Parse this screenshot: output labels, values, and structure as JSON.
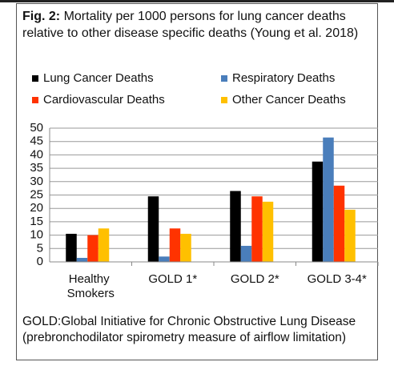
{
  "chart_data": {
    "type": "bar",
    "figure_label": "Fig. 2:",
    "title": "Mortality per 1000 persons for lung cancer deaths relative to other disease specific deaths (Young et al. 2018)",
    "categories": [
      "Healthy Smokers",
      "GOLD 1*",
      "GOLD 2*",
      "GOLD 3-4*"
    ],
    "series": [
      {
        "name": "Lung Cancer Deaths",
        "color": "#000000",
        "values": [
          10.5,
          24.5,
          26.5,
          37.5
        ]
      },
      {
        "name": "Respiratory Deaths",
        "color": "#4a7ebb",
        "values": [
          1.5,
          2,
          6,
          46.5
        ]
      },
      {
        "name": "Cardiovascular Deaths",
        "color": "#ff3300",
        "values": [
          10,
          12.5,
          24.5,
          28.5
        ]
      },
      {
        "name": "Other Cancer Deaths",
        "color": "#ffc000",
        "values": [
          12.5,
          10.5,
          22.5,
          19.5
        ]
      }
    ],
    "ylim": [
      0,
      50
    ],
    "yticks": [
      0,
      5,
      10,
      15,
      20,
      25,
      30,
      35,
      40,
      45,
      50
    ],
    "grid": true,
    "note": "GOLD:Global Initiative for Chronic Obstructive Lung Disease (prebronchodilator spirometry measure of airflow limitation)"
  }
}
